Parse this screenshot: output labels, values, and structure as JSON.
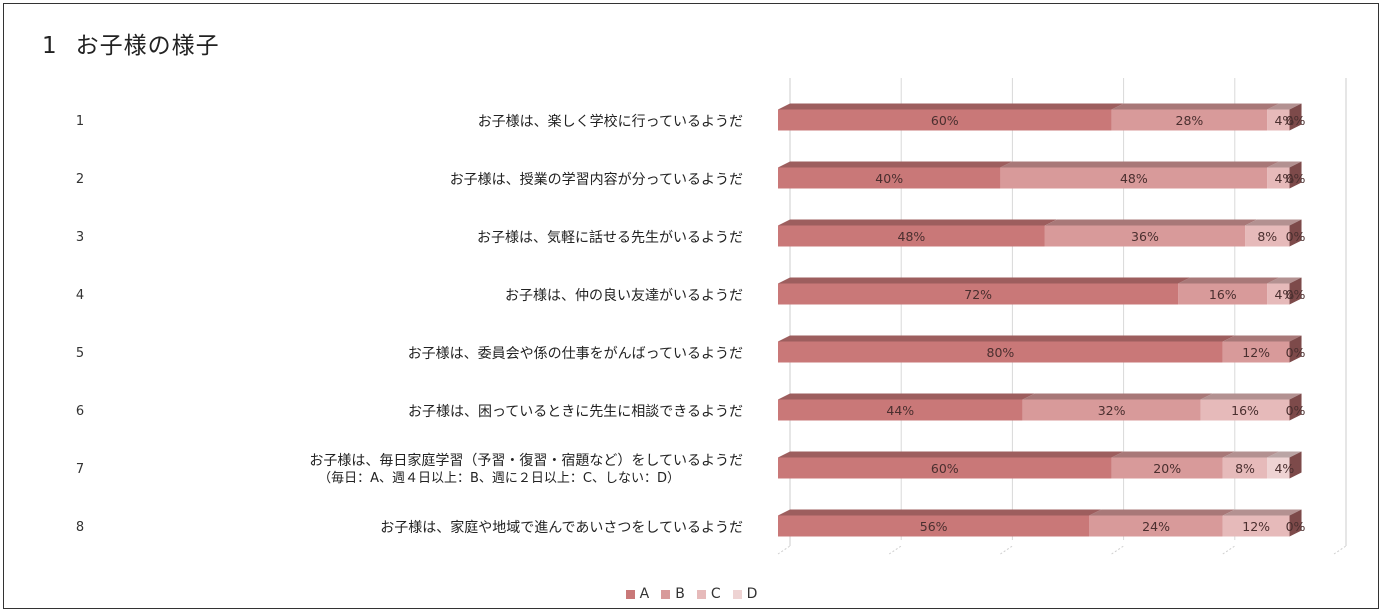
{
  "title": {
    "number": "1",
    "text": "お子様の様子"
  },
  "colors": {
    "A": "#c97878",
    "B": "#d89a9a",
    "C": "#e6baba",
    "D": "#eed3d3"
  },
  "chart_data": {
    "type": "bar",
    "orientation": "horizontal",
    "stacked": "percent",
    "grid": true,
    "legend_position": "bottom",
    "categories": [
      {
        "num": "1",
        "label": [
          "お子様は、楽しく学校に行っているようだ"
        ]
      },
      {
        "num": "2",
        "label": [
          "お子様は、授業の学習内容が分っているようだ"
        ]
      },
      {
        "num": "3",
        "label": [
          "お子様は、気軽に話せる先生がいるようだ"
        ]
      },
      {
        "num": "4",
        "label": [
          "お子様は、仲の良い友達がいるようだ"
        ]
      },
      {
        "num": "5",
        "label": [
          "お子様は、委員会や係の仕事をがんばっているようだ"
        ]
      },
      {
        "num": "6",
        "label": [
          "お子様は、困っているときに先生に相談できるようだ"
        ]
      },
      {
        "num": "7",
        "label": [
          "お子様は、毎日家庭学習（予習・復習・宿題など）をしているようだ",
          "（毎日：A、週４日以上：B、週に２日以上：C、しない：D）"
        ]
      },
      {
        "num": "8",
        "label": [
          "お子様は、家庭や地域で進んであいさつをしているようだ"
        ]
      }
    ],
    "series": [
      {
        "name": "A",
        "values": [
          60,
          40,
          48,
          72,
          80,
          44,
          60,
          56
        ]
      },
      {
        "name": "B",
        "values": [
          28,
          48,
          36,
          16,
          12,
          32,
          20,
          24
        ]
      },
      {
        "name": "C",
        "values": [
          4,
          4,
          8,
          4,
          0,
          16,
          8,
          12
        ]
      },
      {
        "name": "D",
        "values": [
          0,
          0,
          0,
          0,
          0,
          0,
          4,
          0
        ]
      }
    ],
    "data_labels": [
      [
        "60%",
        "28%",
        "4%",
        "0%"
      ],
      [
        "40%",
        "48%",
        "4%",
        "0%"
      ],
      [
        "48%",
        "36%",
        "8%",
        "0%"
      ],
      [
        "72%",
        "16%",
        "4%",
        "0%"
      ],
      [
        "80%",
        "12%",
        "0%",
        ""
      ],
      [
        "44%",
        "32%",
        "16%",
        "0%"
      ],
      [
        "60%",
        "20%",
        "8%",
        "4%"
      ],
      [
        "56%",
        "24%",
        "12%",
        "0%"
      ]
    ]
  }
}
